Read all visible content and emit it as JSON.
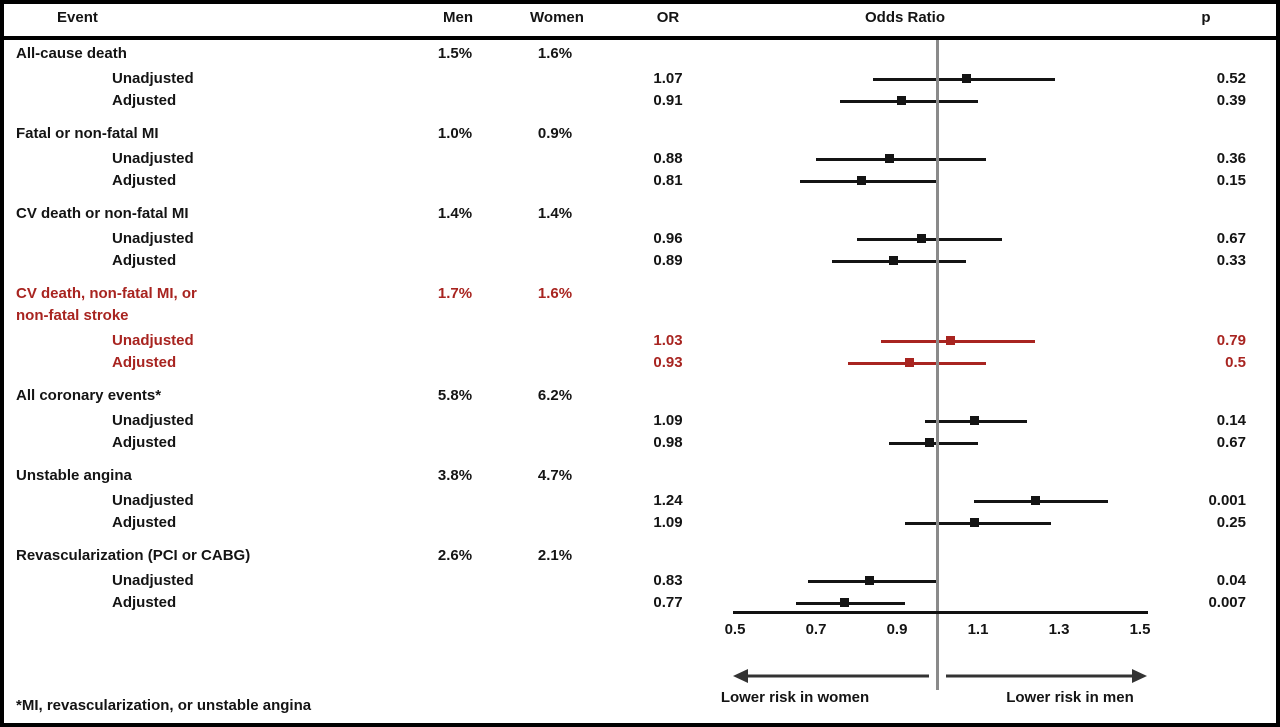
{
  "header": {
    "event": "Event",
    "men": "Men",
    "women": "Women",
    "or": "OR",
    "odds_ratio": "Odds Ratio",
    "p": "p"
  },
  "footer": {
    "footnote": "*MI, revascularization, or unstable angina"
  },
  "chart_data": {
    "type": "forest-plot",
    "title": "Odds Ratio",
    "x_axis": {
      "min": 0.5,
      "max": 1.5,
      "ticks": [
        0.5,
        0.7,
        0.9,
        1.1,
        1.3,
        1.5
      ],
      "reference_line": 1.0
    },
    "direction_labels": {
      "left": "Lower risk in women",
      "right": "Lower risk in men"
    },
    "colors": {
      "default": "#141414",
      "highlight": "#a82420",
      "reference_line": "#8a8a8a"
    },
    "groups": [
      {
        "event": "All-cause death",
        "men": "1.5%",
        "women": "1.6%",
        "highlight": false,
        "estimates": [
          {
            "label": "Unadjusted",
            "or": 1.07,
            "or_text": "1.07",
            "ci_low": 0.84,
            "ci_high": 1.29,
            "p": "0.52"
          },
          {
            "label": "Adjusted",
            "or": 0.91,
            "or_text": "0.91",
            "ci_low": 0.76,
            "ci_high": 1.1,
            "p": "0.39"
          }
        ]
      },
      {
        "event": "Fatal or non-fatal MI",
        "men": "1.0%",
        "women": "0.9%",
        "highlight": false,
        "estimates": [
          {
            "label": "Unadjusted",
            "or": 0.88,
            "or_text": "0.88",
            "ci_low": 0.7,
            "ci_high": 1.12,
            "p": "0.36"
          },
          {
            "label": "Adjusted",
            "or": 0.81,
            "or_text": "0.81",
            "ci_low": 0.66,
            "ci_high": 1.0,
            "p": "0.15"
          }
        ]
      },
      {
        "event": "CV death or non-fatal MI",
        "men": "1.4%",
        "women": "1.4%",
        "highlight": false,
        "estimates": [
          {
            "label": "Unadjusted",
            "or": 0.96,
            "or_text": "0.96",
            "ci_low": 0.8,
            "ci_high": 1.16,
            "p": "0.67"
          },
          {
            "label": "Adjusted",
            "or": 0.89,
            "or_text": "0.89",
            "ci_low": 0.74,
            "ci_high": 1.07,
            "p": "0.33"
          }
        ]
      },
      {
        "event": "CV death, non-fatal MI, or",
        "event_line2": "non-fatal stroke",
        "men": "1.7%",
        "women": "1.6%",
        "highlight": true,
        "estimates": [
          {
            "label": "Unadjusted",
            "or": 1.03,
            "or_text": "1.03",
            "ci_low": 0.86,
            "ci_high": 1.24,
            "p": "0.79"
          },
          {
            "label": "Adjusted",
            "or": 0.93,
            "or_text": "0.93",
            "ci_low": 0.78,
            "ci_high": 1.12,
            "p": "0.5"
          }
        ]
      },
      {
        "event": "All coronary events*",
        "men": "5.8%",
        "women": "6.2%",
        "highlight": false,
        "estimates": [
          {
            "label": "Unadjusted",
            "or": 1.09,
            "or_text": "1.09",
            "ci_low": 0.97,
            "ci_high": 1.22,
            "p": "0.14"
          },
          {
            "label": "Adjusted",
            "or": 0.98,
            "or_text": "0.98",
            "ci_low": 0.88,
            "ci_high": 1.1,
            "p": "0.67"
          }
        ]
      },
      {
        "event": "Unstable angina",
        "men": "3.8%",
        "women": "4.7%",
        "highlight": false,
        "estimates": [
          {
            "label": "Unadjusted",
            "or": 1.24,
            "or_text": "1.24",
            "ci_low": 1.09,
            "ci_high": 1.42,
            "p": "0.001"
          },
          {
            "label": "Adjusted",
            "or": 1.09,
            "or_text": "1.09",
            "ci_low": 0.92,
            "ci_high": 1.28,
            "p": "0.25"
          }
        ]
      },
      {
        "event": "Revascularization (PCI or CABG)",
        "men": "2.6%",
        "women": "2.1%",
        "highlight": false,
        "estimates": [
          {
            "label": "Unadjusted",
            "or": 0.83,
            "or_text": "0.83",
            "ci_low": 0.68,
            "ci_high": 1.0,
            "p": "0.04"
          },
          {
            "label": "Adjusted",
            "or": 0.77,
            "or_text": "0.77",
            "ci_low": 0.65,
            "ci_high": 0.92,
            "p": "0.007"
          }
        ]
      }
    ]
  }
}
